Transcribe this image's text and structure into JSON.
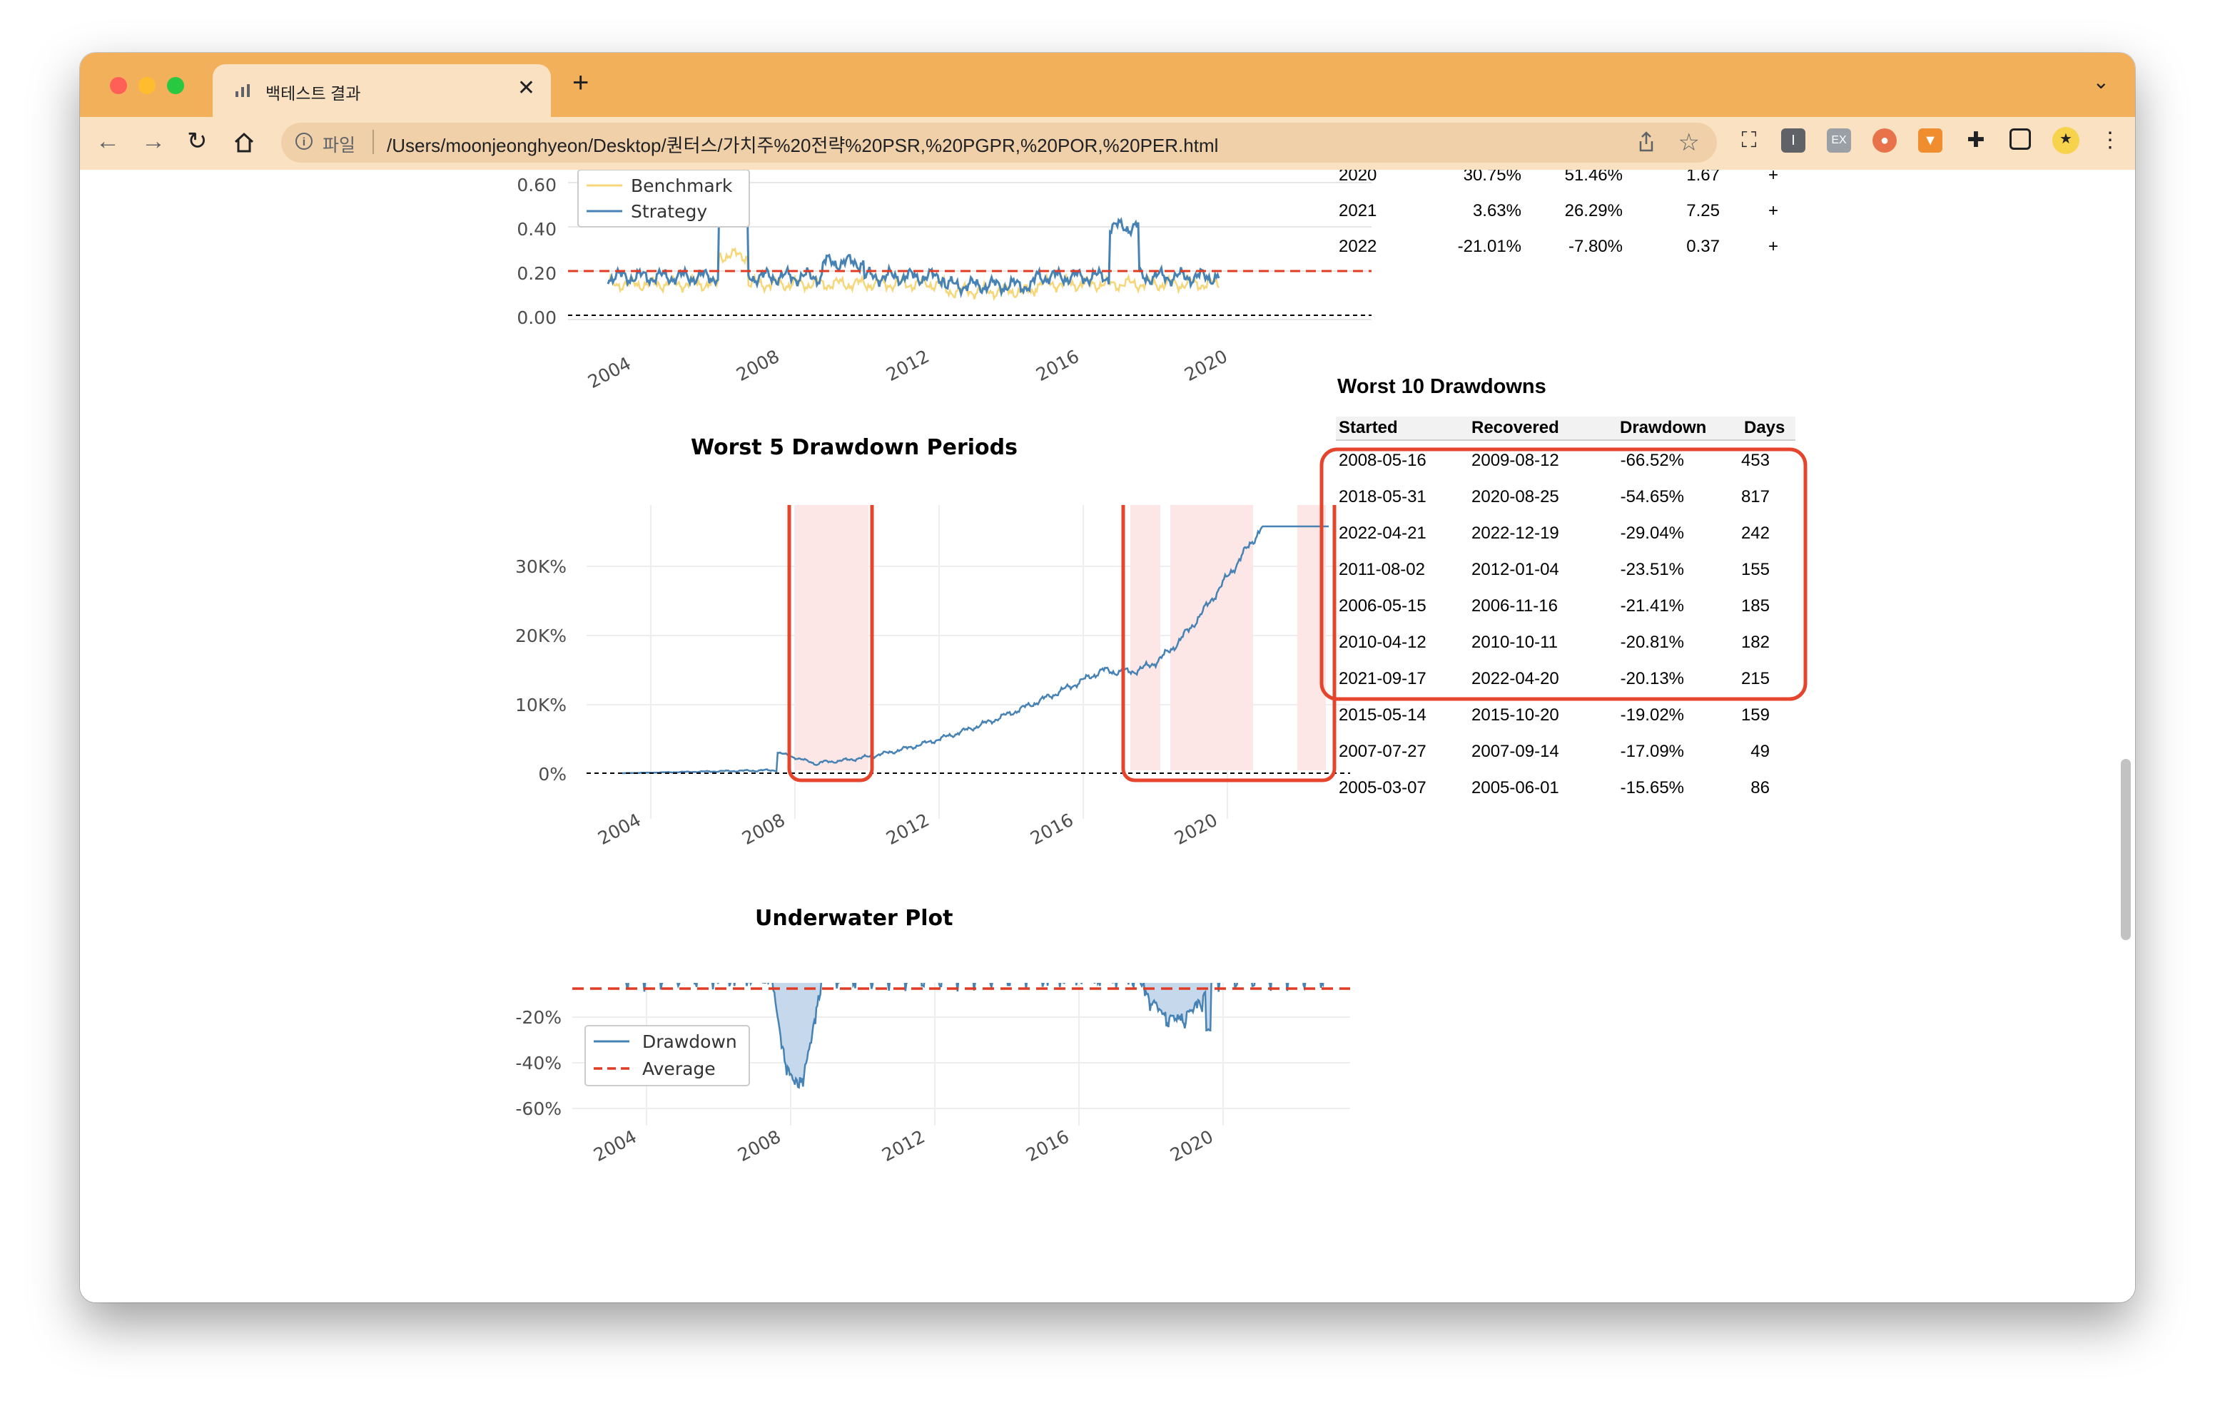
{
  "browser": {
    "tab_title": "백테스트 결과",
    "new_tab": "+",
    "tab_close": "✕",
    "address_scheme": "파일",
    "address_url": "/Users/moonjeonghyeon/Desktop/퀀터스/가치주%20전략%20PSR,%20PGPR,%20POR,%20PER.html",
    "extensions": [
      "screen-capture-icon",
      "reader-icon",
      "ex-extension-icon",
      "cookie-icon",
      "metamask-fox-icon",
      "puzzle-icon",
      "sidepanel-icon",
      "profile-avatar-icon"
    ]
  },
  "colors": {
    "tabstrip": "#f2b05a",
    "toolbar": "#fae1c1",
    "strategy": "#4682b4",
    "benchmark": "#f5d77a",
    "average": "#e03b24",
    "highlight": "#fde7e6",
    "annotation": "#e6452d"
  },
  "chart1": {
    "yticks": [
      "0.60",
      "0.40",
      "0.20",
      "0.00"
    ],
    "xticks": [
      "2004",
      "2008",
      "2012",
      "2016",
      "2020"
    ],
    "legend": [
      "Benchmark",
      "Strategy"
    ]
  },
  "chart2": {
    "title": "Worst 5 Drawdown Periods",
    "yticks": [
      "30K%",
      "20K%",
      "10K%",
      "0%"
    ],
    "xticks": [
      "2004",
      "2008",
      "2012",
      "2016",
      "2020"
    ]
  },
  "chart3": {
    "title": "Underwater Plot",
    "yticks": [
      "0%",
      "-20%",
      "-40%",
      "-60%"
    ],
    "xticks": [
      "2004",
      "2008",
      "2012",
      "2016",
      "2020"
    ],
    "legend": [
      "Drawdown",
      "Average"
    ]
  },
  "eoy_rows": [
    [
      "2020",
      "30.75%",
      "51.46%",
      "1.67",
      "+"
    ],
    [
      "2021",
      "3.63%",
      "26.29%",
      "7.25",
      "+"
    ],
    [
      "2022",
      "-21.01%",
      "-7.80%",
      "0.37",
      "+"
    ]
  ],
  "drawdowns": {
    "title": "Worst 10 Drawdowns",
    "headers": [
      "Started",
      "Recovered",
      "Drawdown",
      "Days"
    ],
    "rows": [
      [
        "2008-05-16",
        "2009-08-12",
        "-66.52%",
        "453"
      ],
      [
        "2018-05-31",
        "2020-08-25",
        "-54.65%",
        "817"
      ],
      [
        "2022-04-21",
        "2022-12-19",
        "-29.04%",
        "242"
      ],
      [
        "2011-08-02",
        "2012-01-04",
        "-23.51%",
        "155"
      ],
      [
        "2006-05-15",
        "2006-11-16",
        "-21.41%",
        "185"
      ],
      [
        "2010-04-12",
        "2010-10-11",
        "-20.81%",
        "182"
      ],
      [
        "2021-09-17",
        "2022-04-20",
        "-20.13%",
        "215"
      ],
      [
        "2015-05-14",
        "2015-10-20",
        "-19.02%",
        "159"
      ],
      [
        "2007-07-27",
        "2007-09-14",
        "-17.09%",
        "49"
      ],
      [
        "2005-03-07",
        "2005-06-01",
        "-15.65%",
        "86"
      ]
    ]
  }
}
